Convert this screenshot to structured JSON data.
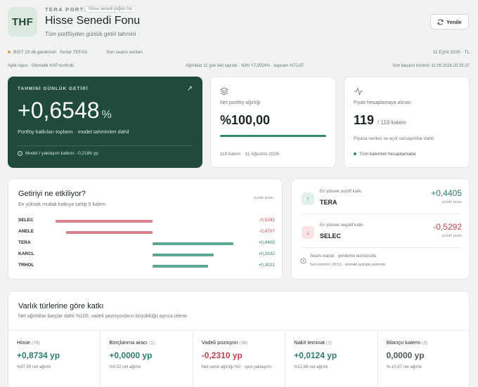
{
  "header": {
    "logo": "THF",
    "brand": "TERA PORTFÖY",
    "badge": "Hisse senedi yoğun fon",
    "title": "Hisse Senedi Fonu",
    "subtitle": "Tüm portföyden günlük getiri tahmini",
    "refresh_label": "Yenile"
  },
  "meta": {
    "delay": "BIST 15 dk gecikmeli · fonlar TEFAS",
    "session": "Son seans verileri",
    "date": "11 Eylül 2026 · TL",
    "report": "Aylık rapor · Otomatik KAP kontrolü",
    "weights": "Ağırlıklar 11 gün ileri taşındı · NAV +7,5024% · kapsam %72,97",
    "last_check": "Son başarılı kontrol: 11.09.2026 20:35:37"
  },
  "hero": {
    "label": "TAHMİNİ GÜNLÜK GETİRİ",
    "value": "+0,6548",
    "unit": "%",
    "sub": "Portföy katkıları toplamı · model tahminleri dahil",
    "foot": "Model / yaklaşım katkısı: -0,2186 yp"
  },
  "weight_card": {
    "label": "Net portföy ağırlığı",
    "value": "%100,00",
    "fill": 1.0,
    "foot": "119 kalem · 31 Ağustos 2026"
  },
  "priced_card": {
    "label": "Fiyatı hesaplamaya alınan",
    "value": "119",
    "of": "/ 119 kalem",
    "note": "Piyasa verileri ve açık varsayımlar dahil",
    "status": "Tüm kalemler hesaplamada"
  },
  "drivers": {
    "title": "Getiriyi ne etkiliyor?",
    "subtitle": "En yüksek mutlak katkıya sahip 5 kalem",
    "unit": "yüzde puan",
    "rows": [
      {
        "name": "SELEC",
        "value": -0.5292,
        "label": "-0,5292"
      },
      {
        "name": "ANELE",
        "value": -0.4707,
        "label": "-0,4707"
      },
      {
        "name": "TERA",
        "value": 0.4405,
        "label": "+0,4405"
      },
      {
        "name": "KARCL",
        "value": 0.3332,
        "label": "+0,3332"
      },
      {
        "name": "TRHOL",
        "value": 0.3021,
        "label": "+0,3021"
      }
    ]
  },
  "contributors": {
    "pos_label": "En yüksek pozitif katkı",
    "pos_name": "TERA",
    "pos_value": "+0,4405",
    "neg_label": "En yüksek negatif katkı",
    "neg_name": "SELEC",
    "neg_value": "-0,5292",
    "unit": "yüzde puan",
    "session": "Seans kapalı · yenileme durduruldu",
    "session2": "Son kontrol: 20:51 · sonraki açılışta sürecek"
  },
  "assets": {
    "title": "Varlık türlerine göre katkı",
    "subtitle": "Net ağırlıklar borçlar dahil %100, vadeli pozisyonların büyüklüğü ayrıca izlenir.",
    "cols": [
      {
        "name": "Hisse",
        "count": "(78)",
        "value": "+0,8734 yp",
        "weight": "%97,99 net ağırlık",
        "tone": "pos"
      },
      {
        "name": "Borçlanma aracı",
        "count": "(1)",
        "value": "+0,0000 yp",
        "weight": "%0,02 net ağırlık",
        "tone": "pos"
      },
      {
        "name": "Vadeli pozisyon",
        "count": "(36)",
        "value": "-0,2310 yp",
        "weight": "Net varlık ağırlığı %0 · spot yaklaşımı",
        "tone": "neg"
      },
      {
        "name": "Nakit teminat",
        "count": "(1)",
        "value": "+0,0124 yp",
        "weight": "%12,86 net ağırlık",
        "tone": "pos"
      },
      {
        "name": "Bilanço kalemi",
        "count": "(3)",
        "value": "0,0000 yp",
        "weight": "%-10,87 net ağırlık",
        "tone": "neu"
      }
    ]
  },
  "colors": {
    "accent": "#1f4a3c",
    "positive": "#2b7f63",
    "negative": "#c0444f",
    "bar_positive": "#5aa88f",
    "bar_negative": "#d97f8a"
  }
}
